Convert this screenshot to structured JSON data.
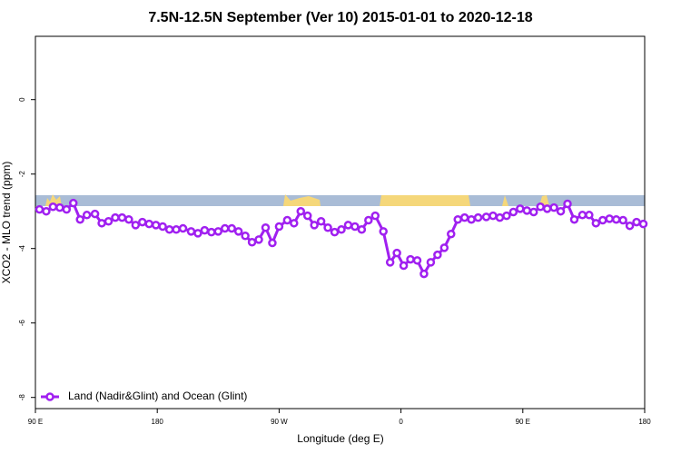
{
  "chart_data": {
    "type": "line",
    "title": "7.5N-12.5N September (Ver 10)   2015-01-01 to 2020-12-18",
    "x_label": "Longitude (deg E)",
    "y_label": "XCO2 - MLO trend (ppm)",
    "xlim": [
      90,
      540
    ],
    "xticks": [
      {
        "value": 90,
        "label": "90 E"
      },
      {
        "value": 180,
        "label": "180"
      },
      {
        "value": 270,
        "label": "90 W"
      },
      {
        "value": 360,
        "label": "0"
      },
      {
        "value": 450,
        "label": "90 E"
      },
      {
        "value": 540,
        "label": "180"
      }
    ],
    "ylim": [
      -8.3,
      1.7
    ],
    "yticks": [
      0,
      -2,
      -4,
      -6,
      -8
    ],
    "legend": "bottom-left",
    "x": [
      93,
      98,
      103,
      108,
      113,
      118,
      123,
      128,
      134,
      139,
      144,
      149,
      154,
      159,
      164,
      169,
      174,
      179,
      184,
      189,
      194,
      199,
      205,
      210,
      215,
      220,
      225,
      230,
      235,
      240,
      245,
      250,
      255,
      260,
      265,
      270,
      276,
      281,
      286,
      291,
      296,
      301,
      306,
      311,
      316,
      321,
      326,
      331,
      336,
      341,
      347,
      352,
      357,
      362,
      367,
      372,
      377,
      382,
      387,
      392,
      397,
      402,
      407,
      412,
      417,
      423,
      428,
      433,
      438,
      443,
      448,
      453,
      458,
      463,
      468,
      473,
      478,
      483,
      488,
      494,
      499,
      504,
      509,
      514,
      519,
      524,
      529,
      534,
      539
    ],
    "series": [
      {
        "name": "Land (Nadir&Glint) and Ocean (Glint)",
        "color": "#a020f0",
        "values": [
          -2.95,
          -3.0,
          -2.88,
          -2.9,
          -2.95,
          -2.78,
          -3.22,
          -3.1,
          -3.07,
          -3.32,
          -3.27,
          -3.17,
          -3.17,
          -3.22,
          -3.37,
          -3.29,
          -3.34,
          -3.37,
          -3.41,
          -3.49,
          -3.49,
          -3.46,
          -3.54,
          -3.59,
          -3.51,
          -3.56,
          -3.54,
          -3.46,
          -3.46,
          -3.54,
          -3.66,
          -3.83,
          -3.76,
          -3.44,
          -3.85,
          -3.41,
          -3.24,
          -3.32,
          -3.0,
          -3.12,
          -3.37,
          -3.27,
          -3.44,
          -3.56,
          -3.49,
          -3.37,
          -3.41,
          -3.49,
          -3.24,
          -3.12,
          -3.54,
          -4.37,
          -4.12,
          -4.46,
          -4.29,
          -4.32,
          -4.68,
          -4.37,
          -4.17,
          -3.98,
          -3.61,
          -3.22,
          -3.17,
          -3.22,
          -3.17,
          -3.15,
          -3.12,
          -3.17,
          -3.12,
          -3.02,
          -2.93,
          -2.98,
          -3.02,
          -2.88,
          -2.93,
          -2.9,
          -3.0,
          -2.8,
          -3.22,
          -3.1,
          -3.1,
          -3.32,
          -3.24,
          -3.2,
          -3.22,
          -3.24,
          -3.39,
          -3.29,
          -3.34
        ]
      }
    ]
  }
}
